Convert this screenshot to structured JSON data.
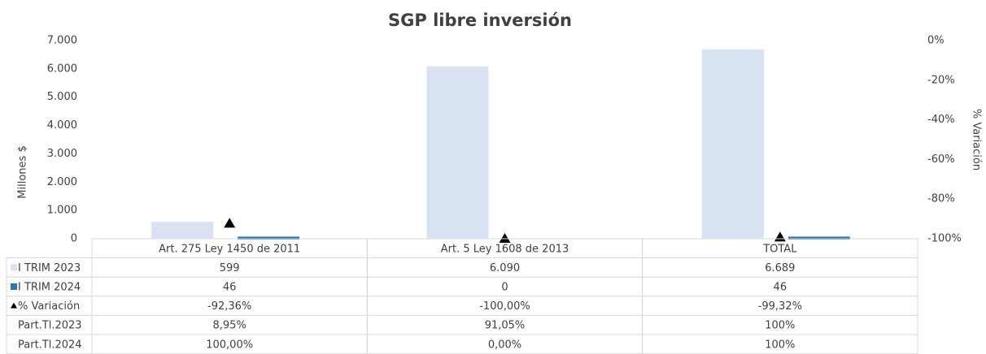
{
  "chart_data": {
    "type": "bar",
    "title": "SGP libre inversión",
    "categories": [
      "Art. 275 Ley 1450 de 2011",
      "Art. 5 Ley 1608 de 2013",
      "TOTAL"
    ],
    "y_label": "Millones $",
    "y2_label": "% Variación",
    "ylim": [
      0,
      7000
    ],
    "yticks": [
      0,
      {
        "value": 1000,
        "label": "1.000"
      },
      {
        "value": 2000,
        "label": "2.000"
      },
      {
        "value": 3000,
        "label": "3.000"
      },
      {
        "value": 4000,
        "label": "4.000"
      },
      {
        "value": 5000,
        "label": "5.000"
      },
      {
        "value": 6000,
        "label": "6.000"
      },
      {
        "value": 7000,
        "label": "7.000"
      }
    ],
    "y2lim": [
      -100,
      0
    ],
    "y2ticks": [
      {
        "value": -100,
        "label": "-100%"
      },
      {
        "value": -80,
        "label": "-80%"
      },
      {
        "value": -60,
        "label": "-60%"
      },
      {
        "value": -40,
        "label": "-40%"
      },
      {
        "value": -20,
        "label": "-20%"
      },
      {
        "value": 0,
        "label": "0%"
      }
    ],
    "series": [
      {
        "name": "I TRIM 2023",
        "color": "#d9e2f3",
        "marker": "bar",
        "values": [
          599,
          6090,
          6689
        ],
        "value_labels": [
          "599",
          "6.090",
          "6.689"
        ]
      },
      {
        "name": "I TRIM 2024",
        "color": "#2e75b6",
        "marker": "bar",
        "values": [
          46,
          0,
          46
        ],
        "value_labels": [
          "46",
          "0",
          "46"
        ]
      },
      {
        "name": "% Variación",
        "color": "#000000",
        "marker": "triangle",
        "axis": "y2",
        "values": [
          -92.36,
          -100,
          -99.32
        ],
        "value_labels": [
          "-92,36%",
          "-100,00%",
          "-99,32%"
        ]
      },
      {
        "name": "Part.Tl.2023",
        "marker": "none",
        "values": [
          8.95,
          91.05,
          100
        ],
        "value_labels": [
          "8,95%",
          "91,05%",
          "100%"
        ]
      },
      {
        "name": "Part.Tl.2024",
        "marker": "none",
        "values": [
          100,
          0,
          100
        ],
        "value_labels": [
          "100,00%",
          "0,00%",
          "100%"
        ]
      }
    ]
  }
}
